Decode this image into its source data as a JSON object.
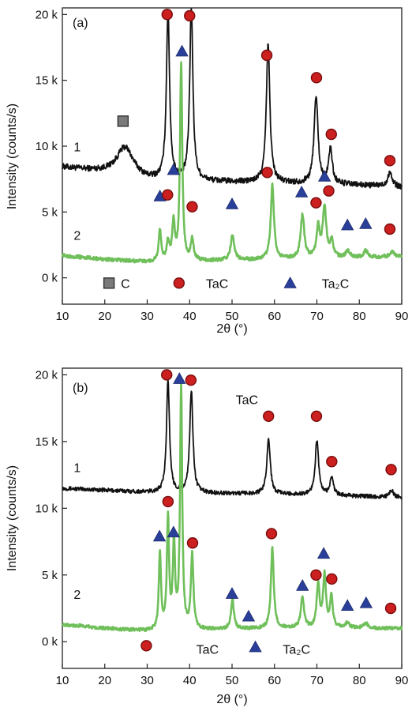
{
  "figure": {
    "panels": [
      "(a)",
      "(b)"
    ]
  },
  "colors": {
    "curve1": "#111111",
    "curve2": "#6fbf5a",
    "tac_marker": "#cc1f1f",
    "ta2c_marker": "#2a3f9a",
    "carbon_marker": "#7a7a7a"
  },
  "chart_data": [
    {
      "type": "line",
      "panel_label": "(a)",
      "xlabel": "2θ (°)",
      "ylabel": "Intensity (counts/s)",
      "xlim": [
        10,
        90
      ],
      "ylim": [
        -2000,
        20500
      ],
      "x_ticks": [
        10,
        20,
        30,
        40,
        50,
        60,
        70,
        80,
        90
      ],
      "y_ticks": [
        0,
        5000,
        10000,
        15000,
        20000
      ],
      "y_tick_labels": [
        "0 k",
        "5 k",
        "10 k",
        "15 k",
        "20 k"
      ],
      "grid": false,
      "series": [
        {
          "label": "1",
          "color": "#111111",
          "baseline": [
            [
              10,
              8400
            ],
            [
              20,
              8000
            ],
            [
              30,
              7400
            ],
            [
              45,
              7300
            ],
            [
              60,
              7200
            ],
            [
              75,
              7100
            ],
            [
              90,
              6900
            ]
          ],
          "peaks": [
            {
              "x": 24.8,
              "h": 2200,
              "w": 2.4
            },
            {
              "x": 34.9,
              "h": 12800,
              "w": 0.45
            },
            {
              "x": 40.4,
              "h": 13200,
              "w": 0.45
            },
            {
              "x": 58.5,
              "h": 10500,
              "w": 0.5
            },
            {
              "x": 69.8,
              "h": 6700,
              "w": 0.55
            },
            {
              "x": 73.2,
              "h": 2700,
              "w": 0.5
            },
            {
              "x": 87.2,
              "h": 1100,
              "w": 0.6
            }
          ],
          "noise": 220
        },
        {
          "label": "2",
          "color": "#6fbf5a",
          "baseline": [
            [
              10,
              1700
            ],
            [
              20,
              1400
            ],
            [
              30,
              1200
            ],
            [
              45,
              1300
            ],
            [
              60,
              1400
            ],
            [
              75,
              1500
            ],
            [
              90,
              1600
            ]
          ],
          "peaks": [
            {
              "x": 33.0,
              "h": 2400,
              "w": 0.35
            },
            {
              "x": 34.9,
              "h": 1400,
              "w": 0.35
            },
            {
              "x": 36.2,
              "h": 2900,
              "w": 0.35
            },
            {
              "x": 38.0,
              "h": 15000,
              "w": 0.32
            },
            {
              "x": 40.6,
              "h": 1600,
              "w": 0.4
            },
            {
              "x": 50.1,
              "h": 1900,
              "w": 0.5
            },
            {
              "x": 59.5,
              "h": 5700,
              "w": 0.45
            },
            {
              "x": 66.6,
              "h": 3300,
              "w": 0.5
            },
            {
              "x": 70.3,
              "h": 2300,
              "w": 0.45
            },
            {
              "x": 71.8,
              "h": 3800,
              "w": 0.5
            },
            {
              "x": 73.5,
              "h": 1300,
              "w": 0.45
            },
            {
              "x": 77.3,
              "h": 500,
              "w": 0.6
            },
            {
              "x": 81.5,
              "h": 500,
              "w": 0.6
            },
            {
              "x": 87.8,
              "h": 350,
              "w": 0.7
            }
          ],
          "noise": 130
        }
      ],
      "curve_labels": [
        {
          "text": "1",
          "x": 13.5,
          "y": 9600
        },
        {
          "text": "2",
          "x": 13.5,
          "y": 2900
        }
      ],
      "markers": [
        {
          "kind": "C",
          "x": 24.3,
          "y": 11900
        },
        {
          "kind": "TaC",
          "x": 34.7,
          "y": 20000
        },
        {
          "kind": "TaC",
          "x": 40.0,
          "y": 19900
        },
        {
          "kind": "TaC",
          "x": 58.2,
          "y": 16900
        },
        {
          "kind": "TaC",
          "x": 69.9,
          "y": 15200
        },
        {
          "kind": "TaC",
          "x": 73.4,
          "y": 10900
        },
        {
          "kind": "TaC",
          "x": 87.2,
          "y": 8900
        },
        {
          "kind": "Ta2C",
          "x": 38.2,
          "y": 17200
        },
        {
          "kind": "Ta2C",
          "x": 36.2,
          "y": 8200
        },
        {
          "kind": "Ta2C",
          "x": 33.0,
          "y": 6200
        },
        {
          "kind": "TaC",
          "x": 34.8,
          "y": 6300
        },
        {
          "kind": "TaC",
          "x": 40.6,
          "y": 5400
        },
        {
          "kind": "Ta2C",
          "x": 50.0,
          "y": 5600
        },
        {
          "kind": "TaC",
          "x": 58.3,
          "y": 8000
        },
        {
          "kind": "Ta2C",
          "x": 66.4,
          "y": 6500
        },
        {
          "kind": "TaC",
          "x": 69.8,
          "y": 5700
        },
        {
          "kind": "TaC",
          "x": 72.8,
          "y": 6600
        },
        {
          "kind": "Ta2C",
          "x": 71.8,
          "y": 7700
        },
        {
          "kind": "Ta2C",
          "x": 77.2,
          "y": 4000
        },
        {
          "kind": "Ta2C",
          "x": 81.5,
          "y": 4100
        },
        {
          "kind": "TaC",
          "x": 87.2,
          "y": 3700
        }
      ],
      "legend": [
        {
          "kind": "C",
          "label": "C",
          "x": 21.0,
          "y": -400
        },
        {
          "kind": "TaC",
          "label": "TaC",
          "x": 37.5,
          "y": -400
        },
        {
          "kind": "Ta2C",
          "label": "Ta₂C",
          "x": 63.7,
          "y": -400
        }
      ]
    },
    {
      "type": "line",
      "panel_label": "(b)",
      "xlabel": "2θ (°)",
      "ylabel": "Intensity (counts/s)",
      "xlim": [
        10,
        90
      ],
      "ylim": [
        -2000,
        20500
      ],
      "x_ticks": [
        10,
        20,
        30,
        40,
        50,
        60,
        70,
        80,
        90
      ],
      "y_ticks": [
        0,
        5000,
        10000,
        15000,
        20000
      ],
      "y_tick_labels": [
        "0 k",
        "5 k",
        "10 k",
        "15 k",
        "20 k"
      ],
      "grid": false,
      "series": [
        {
          "label": "1",
          "color": "#111111",
          "baseline": [
            [
              10,
              11500
            ],
            [
              30,
              11200
            ],
            [
              50,
              11100
            ],
            [
              70,
              11000
            ],
            [
              90,
              10800
            ]
          ],
          "peaks": [
            {
              "x": 34.9,
              "h": 8500,
              "w": 0.42
            },
            {
              "x": 40.4,
              "h": 7700,
              "w": 0.45
            },
            {
              "x": 58.6,
              "h": 4100,
              "w": 0.5
            },
            {
              "x": 70.0,
              "h": 4000,
              "w": 0.5
            },
            {
              "x": 73.5,
              "h": 1300,
              "w": 0.5
            },
            {
              "x": 87.6,
              "h": 500,
              "w": 0.6
            }
          ],
          "noise": 150
        },
        {
          "label": "2",
          "color": "#6fbf5a",
          "baseline": [
            [
              10,
              1300
            ],
            [
              20,
              1000
            ],
            [
              30,
              800
            ],
            [
              45,
              900
            ],
            [
              60,
              1000
            ],
            [
              75,
              1000
            ],
            [
              90,
              1000
            ]
          ],
          "peaks": [
            {
              "x": 33.0,
              "h": 5800,
              "w": 0.3
            },
            {
              "x": 34.9,
              "h": 8400,
              "w": 0.3
            },
            {
              "x": 36.3,
              "h": 6500,
              "w": 0.3
            },
            {
              "x": 38.0,
              "h": 18200,
              "w": 0.3
            },
            {
              "x": 40.6,
              "h": 5600,
              "w": 0.35
            },
            {
              "x": 50.1,
              "h": 2200,
              "w": 0.4
            },
            {
              "x": 59.5,
              "h": 6000,
              "w": 0.4
            },
            {
              "x": 66.6,
              "h": 2300,
              "w": 0.45
            },
            {
              "x": 70.3,
              "h": 3300,
              "w": 0.4
            },
            {
              "x": 71.8,
              "h": 3900,
              "w": 0.4
            },
            {
              "x": 73.4,
              "h": 2300,
              "w": 0.4
            },
            {
              "x": 77.2,
              "h": 400,
              "w": 0.6
            },
            {
              "x": 81.5,
              "h": 400,
              "w": 0.6
            }
          ],
          "noise": 120
        }
      ],
      "curve_labels": [
        {
          "text": "1",
          "x": 13.5,
          "y": 12700
        },
        {
          "text": "2",
          "x": 13.5,
          "y": 3200
        }
      ],
      "markers": [
        {
          "kind": "TaC",
          "x": 34.6,
          "y": 20000
        },
        {
          "kind": "Ta2C",
          "x": 37.6,
          "y": 19700
        },
        {
          "kind": "TaC",
          "x": 40.3,
          "y": 19600
        },
        {
          "kind": "TaC",
          "x": 58.6,
          "y": 16900
        },
        {
          "kind": "TaC",
          "x": 69.9,
          "y": 16900
        },
        {
          "kind": "TaC",
          "x": 73.5,
          "y": 13500
        },
        {
          "kind": "TaC",
          "x": 87.5,
          "y": 12900
        },
        {
          "kind": "TaC",
          "x": 34.9,
          "y": 10500
        },
        {
          "kind": "Ta2C",
          "x": 32.9,
          "y": 7900
        },
        {
          "kind": "Ta2C",
          "x": 36.2,
          "y": 8200
        },
        {
          "kind": "TaC",
          "x": 40.7,
          "y": 7400
        },
        {
          "kind": "Ta2C",
          "x": 50.0,
          "y": 3600
        },
        {
          "kind": "Ta2C",
          "x": 53.9,
          "y": 1900
        },
        {
          "kind": "TaC",
          "x": 59.3,
          "y": 8100
        },
        {
          "kind": "Ta2C",
          "x": 66.6,
          "y": 4200
        },
        {
          "kind": "TaC",
          "x": 69.8,
          "y": 5000
        },
        {
          "kind": "Ta2C",
          "x": 71.6,
          "y": 6600
        },
        {
          "kind": "TaC",
          "x": 73.5,
          "y": 4700
        },
        {
          "kind": "Ta2C",
          "x": 77.2,
          "y": 2700
        },
        {
          "kind": "Ta2C",
          "x": 81.6,
          "y": 2900
        },
        {
          "kind": "TaC",
          "x": 87.4,
          "y": 2500
        },
        {
          "kind": "TaC",
          "x": 29.8,
          "y": -300
        },
        {
          "kind": "Ta2C",
          "x": 55.5,
          "y": -400
        }
      ],
      "text_labels": [
        {
          "text": "TaC",
          "x": 53.5,
          "y": 17800
        },
        {
          "text": "TaC",
          "x": 44.2,
          "y": -900
        },
        {
          "text": "Ta₂C",
          "x": 65.2,
          "y": -900
        }
      ]
    }
  ]
}
